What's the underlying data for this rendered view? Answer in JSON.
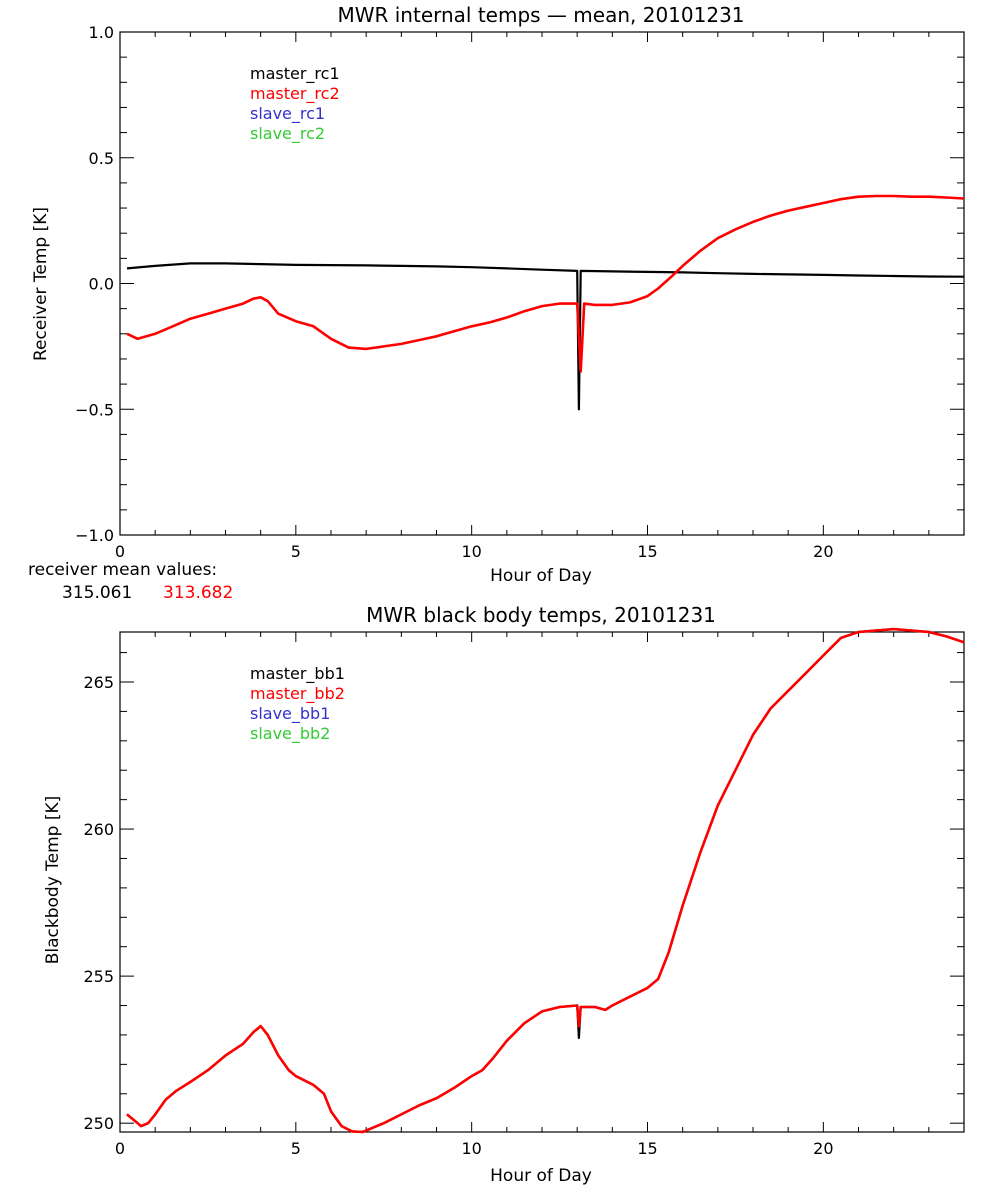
{
  "chart_data": [
    {
      "type": "line",
      "title": "MWR internal temps — mean, 20101231",
      "xlabel": "Hour of Day",
      "ylabel": "Receiver Temp [K]",
      "xlim": [
        0,
        24
      ],
      "ylim": [
        -1.0,
        1.0
      ],
      "x_ticks": [
        0,
        5,
        10,
        15,
        20
      ],
      "x_tick_labels": [
        "0",
        "5",
        "10",
        "15",
        "20"
      ],
      "y_ticks": [
        -1.0,
        -0.5,
        0.0,
        0.5,
        1.0
      ],
      "y_tick_labels": [
        "−1.0",
        "−0.5",
        "0.0",
        "0.5",
        "1.0"
      ],
      "grid": false,
      "legend_position": "top-left",
      "legend": [
        {
          "label": "master_rc1",
          "color": "#000000"
        },
        {
          "label": "master_rc2",
          "color": "#ff0000"
        },
        {
          "label": "slave_rc1",
          "color": "#3333cc"
        },
        {
          "label": "slave_rc2",
          "color": "#33cc33"
        }
      ],
      "series": [
        {
          "name": "master_rc1",
          "color": "#000000",
          "x": [
            0.2,
            1.0,
            2.0,
            3.0,
            4.0,
            5.0,
            6.0,
            7.0,
            8.0,
            9.0,
            10.0,
            11.0,
            12.0,
            13.0,
            13.05,
            13.1,
            14.0,
            15.0,
            16.0,
            17.0,
            18.0,
            19.0,
            20.0,
            21.0,
            22.0,
            23.0,
            24.0
          ],
          "y": [
            0.06,
            0.07,
            0.08,
            0.08,
            0.077,
            0.074,
            0.073,
            0.072,
            0.07,
            0.068,
            0.065,
            0.06,
            0.055,
            0.05,
            -0.5,
            0.05,
            0.048,
            0.046,
            0.044,
            0.041,
            0.038,
            0.036,
            0.034,
            0.032,
            0.03,
            0.028,
            0.027
          ]
        },
        {
          "name": "master_rc2",
          "color": "#ff0000",
          "x": [
            0.2,
            0.5,
            1.0,
            1.5,
            2.0,
            2.5,
            3.0,
            3.5,
            3.8,
            4.0,
            4.2,
            4.5,
            5.0,
            5.5,
            6.0,
            6.5,
            7.0,
            7.5,
            8.0,
            8.5,
            9.0,
            9.5,
            10.0,
            10.5,
            11.0,
            11.5,
            12.0,
            12.5,
            13.0,
            13.1,
            13.2,
            13.5,
            14.0,
            14.5,
            15.0,
            15.3,
            15.7,
            16.0,
            16.5,
            17.0,
            17.5,
            18.0,
            18.5,
            19.0,
            19.5,
            20.0,
            20.5,
            21.0,
            21.5,
            22.0,
            22.5,
            23.0,
            23.5,
            24.0
          ],
          "y": [
            -0.2,
            -0.22,
            -0.2,
            -0.17,
            -0.14,
            -0.12,
            -0.1,
            -0.08,
            -0.06,
            -0.055,
            -0.07,
            -0.12,
            -0.15,
            -0.17,
            -0.22,
            -0.255,
            -0.26,
            -0.25,
            -0.24,
            -0.225,
            -0.21,
            -0.19,
            -0.17,
            -0.155,
            -0.135,
            -0.11,
            -0.09,
            -0.08,
            -0.08,
            -0.35,
            -0.08,
            -0.085,
            -0.085,
            -0.075,
            -0.05,
            -0.02,
            0.03,
            0.07,
            0.13,
            0.18,
            0.215,
            0.245,
            0.27,
            0.29,
            0.305,
            0.32,
            0.335,
            0.345,
            0.348,
            0.348,
            0.345,
            0.345,
            0.342,
            0.338
          ]
        }
      ],
      "annotation_label": "receiver mean values:",
      "annotation_values": [
        {
          "text": "315.061",
          "color": "#000000"
        },
        {
          "text": "313.682",
          "color": "#ff0000"
        }
      ]
    },
    {
      "type": "line",
      "title": "MWR black body temps, 20101231",
      "xlabel": "Hour of Day",
      "ylabel": "Blackbody Temp [K]",
      "xlim": [
        0,
        24
      ],
      "ylim": [
        249.7,
        266.7
      ],
      "x_ticks": [
        0,
        5,
        10,
        15,
        20
      ],
      "x_tick_labels": [
        "0",
        "5",
        "10",
        "15",
        "20"
      ],
      "y_ticks": [
        250,
        255,
        260,
        265
      ],
      "y_tick_labels": [
        "250",
        "255",
        "260",
        "265"
      ],
      "grid": false,
      "legend_position": "top-left",
      "legend": [
        {
          "label": "master_bb1",
          "color": "#000000"
        },
        {
          "label": "master_bb2",
          "color": "#ff0000"
        },
        {
          "label": "slave_bb1",
          "color": "#3333cc"
        },
        {
          "label": "slave_bb2",
          "color": "#33cc33"
        }
      ],
      "series": [
        {
          "name": "master_bb1",
          "color": "#000000",
          "x": [
            0.2,
            0.4,
            0.6,
            0.8,
            1.0,
            1.3,
            1.6,
            2.0,
            2.5,
            3.0,
            3.5,
            3.8,
            4.0,
            4.2,
            4.5,
            4.8,
            5.0,
            5.5,
            5.8,
            6.0,
            6.3,
            6.6,
            6.9,
            7.2,
            7.5,
            8.0,
            8.5,
            9.0,
            9.5,
            10.0,
            10.3,
            10.6,
            11.0,
            11.5,
            12.0,
            12.5,
            13.0,
            13.05,
            13.1,
            13.5,
            13.8,
            14.0,
            14.5,
            15.0,
            15.3,
            15.6,
            16.0,
            16.5,
            17.0,
            17.5,
            18.0,
            18.5,
            19.0,
            19.5,
            20.0,
            20.5,
            21.0,
            21.5,
            22.0,
            22.5,
            23.0,
            23.5,
            24.0
          ],
          "y": [
            250.3,
            250.1,
            249.9,
            250.0,
            250.3,
            250.8,
            251.1,
            251.4,
            251.8,
            252.3,
            252.7,
            253.1,
            253.3,
            253.0,
            252.3,
            251.8,
            251.6,
            251.3,
            251.0,
            250.4,
            249.9,
            249.72,
            249.7,
            249.85,
            250.0,
            250.3,
            250.6,
            250.85,
            251.2,
            251.6,
            251.8,
            252.2,
            252.8,
            253.4,
            253.8,
            253.95,
            254.0,
            252.9,
            253.95,
            253.95,
            253.85,
            254.0,
            254.3,
            254.6,
            254.9,
            255.8,
            257.4,
            259.2,
            260.8,
            262.0,
            263.2,
            264.1,
            264.7,
            265.3,
            265.9,
            266.5,
            266.7,
            266.75,
            266.8,
            266.75,
            266.7,
            266.55,
            266.35
          ]
        },
        {
          "name": "master_bb2",
          "color": "#ff0000",
          "x": [
            0.2,
            0.4,
            0.6,
            0.8,
            1.0,
            1.3,
            1.6,
            2.0,
            2.5,
            3.0,
            3.5,
            3.8,
            4.0,
            4.2,
            4.5,
            4.8,
            5.0,
            5.5,
            5.8,
            6.0,
            6.3,
            6.6,
            6.9,
            7.2,
            7.5,
            8.0,
            8.5,
            9.0,
            9.5,
            10.0,
            10.3,
            10.6,
            11.0,
            11.5,
            12.0,
            12.5,
            13.0,
            13.05,
            13.1,
            13.5,
            13.8,
            14.0,
            14.5,
            15.0,
            15.3,
            15.6,
            16.0,
            16.5,
            17.0,
            17.5,
            18.0,
            18.5,
            19.0,
            19.5,
            20.0,
            20.5,
            21.0,
            21.5,
            22.0,
            22.5,
            23.0,
            23.5,
            24.0
          ],
          "y": [
            250.3,
            250.1,
            249.9,
            250.0,
            250.3,
            250.8,
            251.1,
            251.4,
            251.8,
            252.3,
            252.7,
            253.1,
            253.3,
            253.0,
            252.3,
            251.8,
            251.6,
            251.3,
            251.0,
            250.4,
            249.9,
            249.72,
            249.7,
            249.85,
            250.0,
            250.3,
            250.6,
            250.85,
            251.2,
            251.6,
            251.8,
            252.2,
            252.8,
            253.4,
            253.8,
            253.95,
            254.0,
            253.3,
            253.95,
            253.95,
            253.85,
            254.0,
            254.3,
            254.6,
            254.9,
            255.8,
            257.4,
            259.2,
            260.8,
            262.0,
            263.2,
            264.1,
            264.7,
            265.3,
            265.9,
            266.5,
            266.7,
            266.75,
            266.8,
            266.75,
            266.7,
            266.55,
            266.35
          ]
        }
      ]
    }
  ]
}
